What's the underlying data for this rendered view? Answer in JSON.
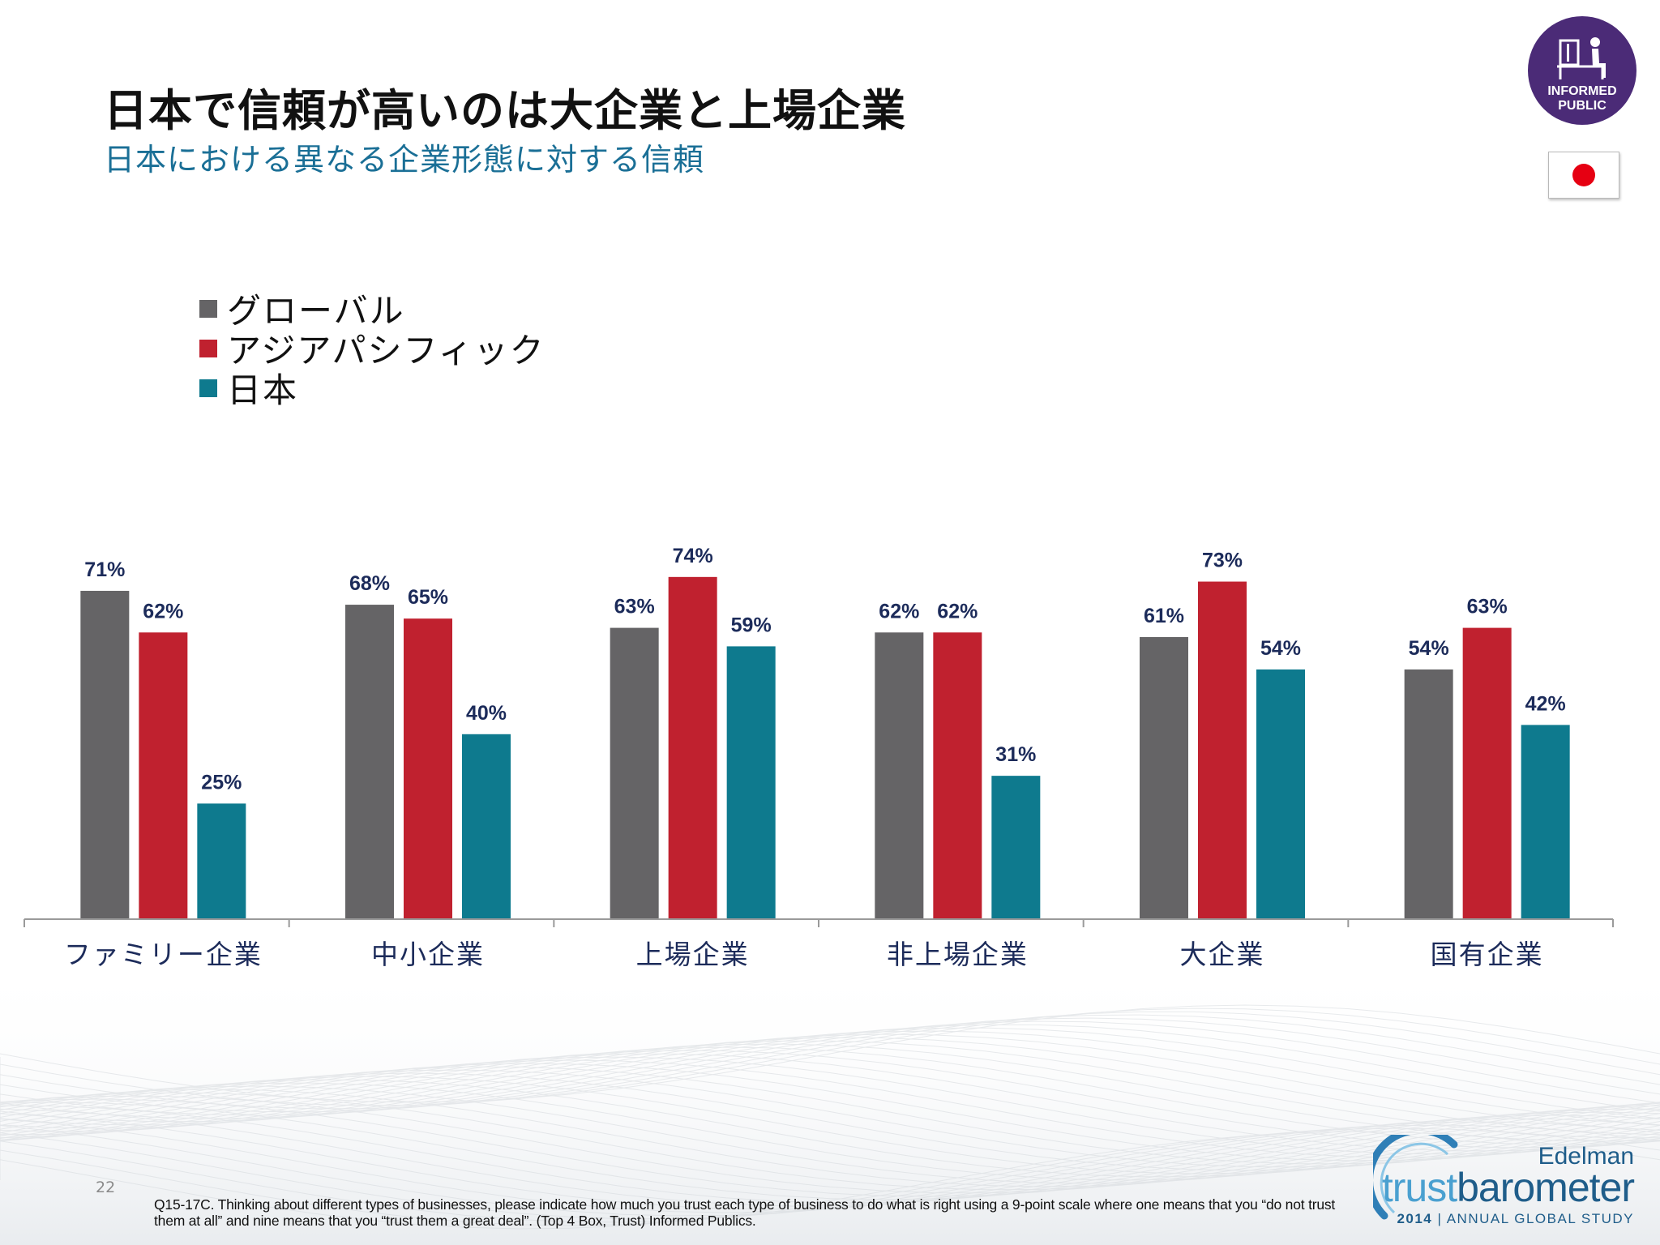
{
  "header": {
    "title": "日本で信頼が高いのは大企業と上場企業",
    "subtitle": "日本における異なる企業形態に対する信頼"
  },
  "badge": {
    "line1": "INFORMED",
    "line2": "PUBLIC",
    "icon": "person-at-desk-icon",
    "color": "#4b2b77"
  },
  "flag": {
    "country": "japan-flag-icon"
  },
  "chart_data": {
    "type": "bar",
    "title": "日本における異なる企業形態に対する信頼",
    "categories": [
      "ファミリー企業",
      "中小企業",
      "上場企業",
      "非上場企業",
      "大企業",
      "国有企業"
    ],
    "series": [
      {
        "name": "グローバル",
        "color": "#656466",
        "values": [
          71,
          68,
          63,
          62,
          61,
          54
        ]
      },
      {
        "name": "アジアパシフィック",
        "color": "#c0212f",
        "values": [
          62,
          65,
          74,
          62,
          73,
          63
        ]
      },
      {
        "name": "日本",
        "color": "#0e7a8e",
        "values": [
          25,
          40,
          59,
          31,
          54,
          42
        ]
      }
    ],
    "value_suffix": "%",
    "ylim": [
      0,
      100
    ],
    "xlabel": "",
    "ylabel": "",
    "grid": false,
    "legend_position": "top-left"
  },
  "footer": {
    "page_number": "22",
    "footnote": "Q15-17C. Thinking about different types of businesses, please indicate how much you trust each type of business to do what is right using a 9-point scale where one means that you “do not trust them at all” and nine means that you “trust them a great deal”. (Top 4 Box, Trust) Informed Publics."
  },
  "logo": {
    "brand": "Edelman",
    "name_part1": "trust",
    "name_part2": "barometer",
    "year": "2014",
    "tagline": "ANNUAL GLOBAL STUDY"
  }
}
